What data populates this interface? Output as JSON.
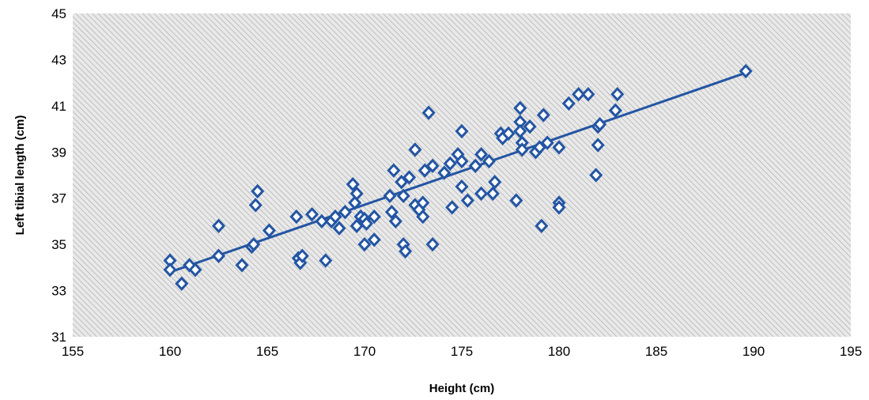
{
  "chart_data": {
    "type": "scatter",
    "title": "",
    "xlabel": "Height (cm)",
    "ylabel": "Left tibial length (cm)",
    "xlim": [
      155,
      195
    ],
    "ylim": [
      31,
      45
    ],
    "xticks": [
      155,
      160,
      165,
      170,
      175,
      180,
      185,
      190,
      195
    ],
    "yticks": [
      31,
      33,
      35,
      37,
      39,
      41,
      43,
      45
    ],
    "grid": false,
    "legend": "none",
    "marker": "diamond-open",
    "colors": {
      "series": "#2355a3",
      "plot_background": "#e6e6e6",
      "hatch": "#b4b4b4"
    },
    "trendline": {
      "type": "linear",
      "x": [
        160,
        189.5
      ],
      "y": [
        33.8,
        42.4
      ]
    },
    "series": [
      {
        "x": [
          160,
          160,
          160.6,
          161,
          161.3,
          162.5,
          162.5,
          163.7,
          164.2,
          164.3,
          164.4,
          164.5,
          165.1,
          166.5,
          166.6,
          166.7,
          166.8,
          167.3,
          167.8,
          168,
          168.3,
          168.5,
          168.7,
          169,
          169.4,
          169.5,
          169.6,
          169.6,
          169.8,
          170,
          170,
          170.1,
          170.5,
          170.5,
          171.3,
          171.4,
          171.5,
          171.6,
          171.9,
          172,
          172,
          172.1,
          172.3,
          172.6,
          172.6,
          172.8,
          173,
          173,
          173.1,
          173.3,
          173.5,
          173.5,
          174.1,
          174.4,
          174.5,
          174.8,
          175,
          175,
          175,
          175.3,
          175.7,
          176,
          176,
          176.4,
          176.6,
          176.7,
          177,
          177.1,
          177.4,
          177.8,
          178,
          178,
          178,
          178.1,
          178.1,
          178.5,
          178.8,
          179,
          179.1,
          179.2,
          179.4,
          180,
          180,
          180,
          180.5,
          181,
          181.5,
          181.9,
          182,
          182,
          182.1,
          182.9,
          183,
          189.6
        ],
        "y": [
          34.3,
          33.9,
          33.3,
          34.1,
          33.9,
          35.8,
          34.5,
          34.1,
          34.9,
          35,
          36.7,
          37.3,
          35.6,
          36.2,
          34.4,
          34.2,
          34.5,
          36.3,
          36,
          34.3,
          36,
          36.2,
          35.7,
          36.4,
          37.6,
          36.8,
          37.2,
          35.8,
          36.2,
          36.1,
          35,
          35.9,
          36.2,
          35.2,
          37.1,
          36.4,
          38.2,
          36,
          37.7,
          35,
          37.1,
          34.7,
          37.9,
          36.7,
          39.1,
          36.5,
          36.2,
          36.8,
          38.2,
          40.7,
          38.4,
          35,
          38.1,
          38.5,
          36.6,
          38.9,
          39.9,
          37.5,
          38.6,
          36.9,
          38.4,
          38.9,
          37.2,
          38.6,
          37.2,
          37.7,
          39.8,
          39.6,
          39.8,
          36.9,
          40.9,
          40.3,
          39.9,
          39.4,
          39.1,
          40.1,
          39,
          39.2,
          35.8,
          40.6,
          39.4,
          39.2,
          36.8,
          36.6,
          41.1,
          41.5,
          41.5,
          38,
          40.1,
          39.3,
          40.2,
          40.8,
          41.5,
          42.5
        ]
      }
    ]
  }
}
